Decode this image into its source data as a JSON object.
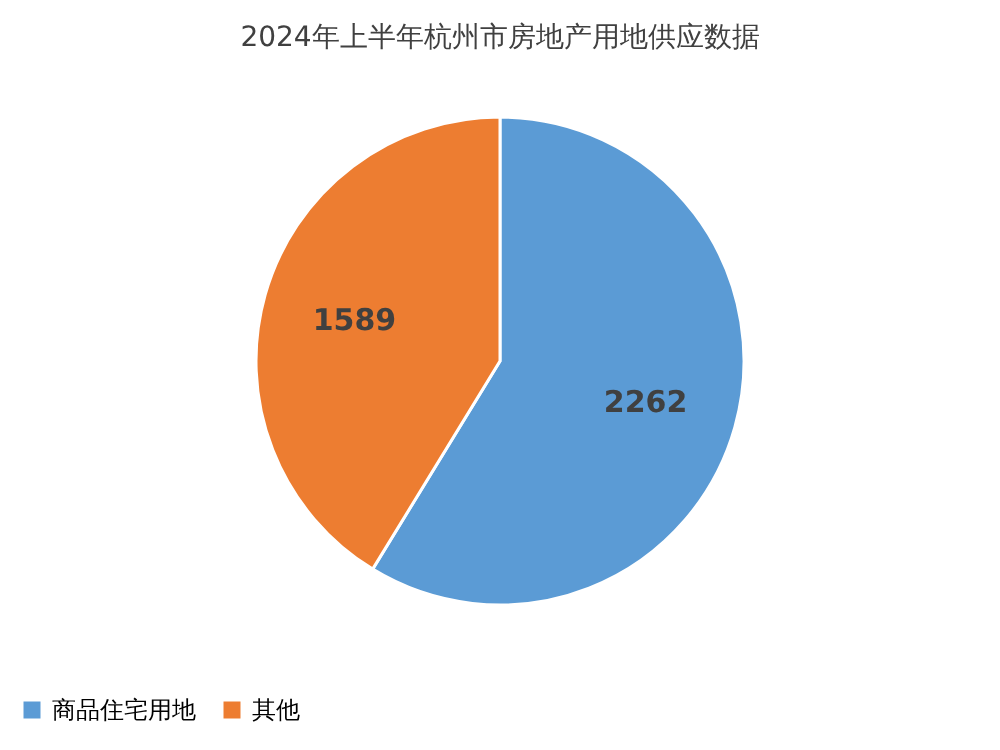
{
  "chart_data": {
    "type": "pie",
    "title": "2024年上半年杭州市房地产用地供应数据",
    "categories": [
      "商品住宅用地",
      "其他"
    ],
    "values": [
      2262,
      1589
    ],
    "colors": [
      "#5b9bd5",
      "#ed7d31"
    ],
    "data_labels": true,
    "legend": "bottom"
  }
}
